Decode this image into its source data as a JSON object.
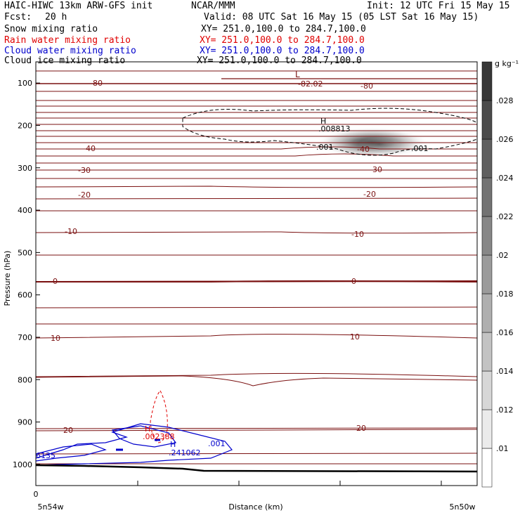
{
  "header": {
    "title": "HAIC-HIWC 13km ARW-GFS init",
    "org": "NCAR/MMM",
    "init": "Init: 12 UTC Fri 15 May 15",
    "fcst_label": "Fcst:",
    "fcst_value": "20 h",
    "valid": "Valid: 08 UTC Sat 16 May 15 (05 LST Sat 16 May 15)"
  },
  "fields": [
    {
      "name": "Snow mixing ratio",
      "color": "#000000",
      "xy": "XY= 251.0,100.0 to 284.7,100.0"
    },
    {
      "name": "Rain water mixing ratio",
      "color": "#e00000",
      "xy": "XY= 251.0,100.0 to 284.7,100.0"
    },
    {
      "name": "Cloud water mixing ratio",
      "color": "#0000cc",
      "xy": "XY= 251.0,100.0 to 284.7,100.0"
    },
    {
      "name": "Cloud ice mixing ratio",
      "color": "#000000",
      "xy": "XY= 251.0,100.0 to 284.7,100.0"
    }
  ],
  "chart_data": {
    "type": "heatmap",
    "xlabel": "Distance (km)",
    "ylabel": "Pressure (hPa)",
    "x_ticks": [
      "0"
    ],
    "x_left_label": "5n54w",
    "x_right_label": "5n50w",
    "y_ticks": [
      100,
      200,
      300,
      400,
      500,
      600,
      700,
      800,
      900,
      1000
    ],
    "ylim": [
      1050,
      50
    ],
    "colorbar": {
      "units": "g kg⁻¹",
      "ticks": [
        ".01",
        ".012",
        ".014",
        ".016",
        ".018",
        ".02",
        ".022",
        ".024",
        ".026",
        ".028"
      ]
    },
    "temperature_labels": [
      "-80",
      "-80",
      "-82.02",
      "L",
      "-40",
      "-40",
      "-30",
      "-30",
      "-20",
      "-20",
      "-10",
      "-10",
      "0",
      "0",
      "10",
      "10",
      "20",
      "20"
    ],
    "ice_labels": [
      "H",
      ".008813",
      ".001",
      ".001"
    ],
    "rain_labels": [
      "H",
      ".002388"
    ],
    "cloud_water_labels": [
      "H",
      ".241062",
      ".001",
      "6135"
    ]
  },
  "colors": {
    "temperature": "#7a1010",
    "rain": "#e00000",
    "cloud_water": "#0000cc",
    "terrain": "#000000"
  }
}
